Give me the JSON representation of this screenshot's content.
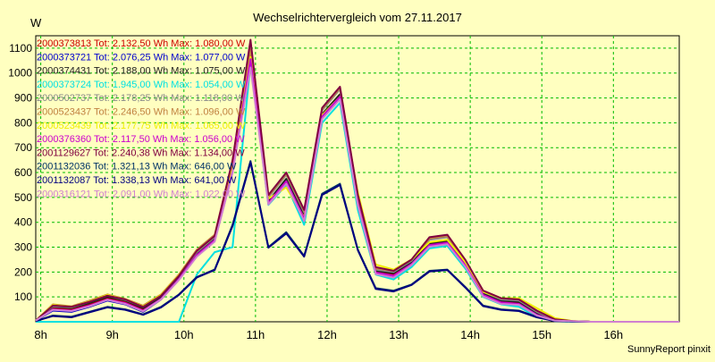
{
  "window": {
    "footer": "SunnyReport pinxit"
  },
  "chart_data": {
    "type": "line",
    "title": "Wechselrichtervergleich vom 27.11.2017",
    "xlabel": "",
    "ylabel": "W",
    "grid": true,
    "legend_placement": "top-left",
    "xlim": [
      7.93,
      16.92
    ],
    "ylim": [
      0,
      1150
    ],
    "x_ticks": [
      8,
      9,
      10,
      11,
      12,
      13,
      14,
      15,
      16
    ],
    "x_tick_labels": [
      "8h",
      "9h",
      "10h",
      "11h",
      "12h",
      "13h",
      "14h",
      "15h",
      "16h"
    ],
    "y_ticks": [
      100,
      200,
      300,
      400,
      500,
      600,
      700,
      800,
      900,
      1000,
      1100
    ],
    "y_tick_labels": [
      "100",
      "200",
      "300",
      "400",
      "500",
      "600",
      "700",
      "800",
      "900",
      "1000",
      "1100"
    ],
    "x": [
      7.93,
      8.17,
      8.43,
      8.68,
      8.93,
      9.18,
      9.43,
      9.68,
      9.93,
      10.18,
      10.43,
      10.68,
      10.93,
      11.18,
      11.43,
      11.68,
      11.93,
      12.18,
      12.43,
      12.68,
      12.93,
      13.18,
      13.43,
      13.68,
      13.93,
      14.18,
      14.43,
      14.68,
      14.93,
      15.18,
      15.43,
      15.68,
      15.93,
      16.18,
      16.43,
      16.68,
      16.92
    ],
    "series": [
      {
        "name": "2000373813",
        "legend": "2000373813  Tot: 2.132,50 Wh Max: 1.080,00 W",
        "color": "#cc0000",
        "values": [
          5,
          55,
          50,
          70,
          95,
          80,
          50,
          95,
          175,
          270,
          330,
          610,
          1080,
          480,
          570,
          420,
          830,
          910,
          480,
          200,
          190,
          235,
          310,
          320,
          230,
          110,
          80,
          75,
          30,
          5,
          2,
          0,
          0,
          0,
          0,
          0,
          0
        ]
      },
      {
        "name": "2000373721",
        "legend": "2000373721  Tot: 2.076,25 Wh Max: 1.077,00 W",
        "color": "#0000cc",
        "values": [
          5,
          45,
          40,
          60,
          85,
          70,
          40,
          90,
          170,
          265,
          325,
          600,
          1070,
          475,
          560,
          410,
          820,
          900,
          470,
          195,
          180,
          230,
          305,
          315,
          225,
          105,
          75,
          70,
          25,
          5,
          2,
          0,
          0,
          0,
          0,
          0,
          0
        ]
      },
      {
        "name": "2000374431",
        "legend": "2000374431  Tot: 2.188,00 Wh Max: 1.075,00 W",
        "color": "#202020",
        "values": [
          5,
          60,
          55,
          75,
          100,
          85,
          55,
          100,
          180,
          275,
          335,
          615,
          1075,
          485,
          575,
          425,
          835,
          915,
          485,
          205,
          195,
          240,
          315,
          325,
          235,
          115,
          85,
          80,
          35,
          6,
          2,
          0,
          0,
          0,
          0,
          0,
          0
        ]
      },
      {
        "name": "2000373724",
        "legend": "2000373724  Tot: 1.945,00 Wh Max: 1.054,00 W",
        "color": "#00e0e0",
        "values": [
          0,
          0,
          0,
          0,
          0,
          0,
          0,
          0,
          0,
          190,
          280,
          300,
          1040,
          470,
          550,
          390,
          800,
          880,
          450,
          190,
          170,
          220,
          295,
          305,
          215,
          100,
          70,
          60,
          20,
          3,
          0,
          0,
          0,
          0,
          0,
          0,
          0
        ]
      },
      {
        "name": "2000502737",
        "legend": "2000502737  Tot: 2.178,25 Wh Max: 1.118,00 W",
        "color": "#8a8a8a",
        "values": [
          5,
          62,
          58,
          80,
          105,
          88,
          60,
          105,
          185,
          280,
          340,
          640,
          1118,
          500,
          590,
          440,
          850,
          935,
          500,
          210,
          200,
          245,
          330,
          340,
          240,
          120,
          90,
          85,
          40,
          8,
          2,
          0,
          0,
          0,
          0,
          0,
          0
        ]
      },
      {
        "name": "2000523437",
        "legend": "2000523437  Tot: 2.246,50 Wh Max: 1.096,00 W",
        "color": "#c08040",
        "values": [
          5,
          70,
          62,
          85,
          110,
          92,
          65,
          110,
          190,
          290,
          350,
          645,
          1096,
          505,
          595,
          445,
          855,
          940,
          505,
          215,
          205,
          250,
          335,
          345,
          245,
          125,
          95,
          90,
          45,
          10,
          3,
          0,
          0,
          0,
          0,
          0,
          0
        ]
      },
      {
        "name": "2000523439",
        "legend": "2000523439  Tot: 2.177,75 Wh Max: 1.065,00 W",
        "color": "#f0f000",
        "values": [
          5,
          68,
          60,
          82,
          108,
          90,
          62,
          108,
          188,
          285,
          345,
          620,
          1065,
          495,
          540,
          420,
          830,
          905,
          520,
          230,
          210,
          250,
          320,
          330,
          240,
          120,
          95,
          95,
          55,
          15,
          3,
          0,
          0,
          0,
          0,
          0,
          0
        ]
      },
      {
        "name": "2000376360",
        "legend": "2000376360  Tot: 2.117,50 Wh Max: 1.056,00 W",
        "color": "#cc00cc",
        "values": [
          5,
          50,
          45,
          65,
          90,
          75,
          45,
          92,
          172,
          268,
          328,
          605,
          1056,
          478,
          565,
          415,
          825,
          905,
          475,
          198,
          185,
          232,
          308,
          318,
          228,
          108,
          78,
          72,
          28,
          5,
          2,
          0,
          0,
          0,
          0,
          0,
          0
        ]
      },
      {
        "name": "2001129627",
        "legend": "2001129627  Tot: 2.240,38 Wh Max: 1.134,00 W",
        "color": "#800040",
        "values": [
          5,
          65,
          60,
          80,
          105,
          90,
          60,
          105,
          185,
          285,
          345,
          650,
          1134,
          510,
          600,
          450,
          860,
          945,
          510,
          220,
          205,
          250,
          340,
          350,
          250,
          125,
          95,
          90,
          45,
          10,
          3,
          0,
          0,
          0,
          0,
          0,
          0
        ]
      },
      {
        "name": "2001132036",
        "legend": "2001132036  Tot: 1.321,13 Wh Max: 646,00 W",
        "color": "#003366",
        "values": [
          3,
          25,
          20,
          40,
          60,
          50,
          30,
          60,
          110,
          180,
          210,
          390,
          646,
          300,
          360,
          265,
          515,
          555,
          290,
          135,
          125,
          150,
          205,
          210,
          140,
          65,
          50,
          45,
          20,
          3,
          1,
          0,
          0,
          0,
          0,
          0,
          0
        ]
      },
      {
        "name": "2001132087",
        "legend": "2001132087  Tot: 1.338,13 Wh Max: 641,00 W",
        "color": "#000080",
        "values": [
          3,
          23,
          18,
          38,
          58,
          48,
          28,
          58,
          108,
          178,
          208,
          385,
          641,
          298,
          355,
          262,
          510,
          550,
          288,
          132,
          122,
          148,
          202,
          208,
          138,
          63,
          48,
          43,
          18,
          3,
          1,
          0,
          0,
          0,
          0,
          0,
          0
        ]
      },
      {
        "name": "2000316121",
        "legend": "2000316121  Tot: 2.091,00 Wh Max: 1.022,00 W",
        "color": "#d080d0",
        "values": [
          5,
          48,
          43,
          62,
          88,
          72,
          42,
          90,
          168,
          262,
          322,
          598,
          1022,
          472,
          555,
          405,
          815,
          895,
          468,
          192,
          178,
          228,
          302,
          312,
          222,
          102,
          72,
          68,
          25,
          5,
          2,
          0,
          0,
          0,
          0,
          0,
          0
        ]
      }
    ]
  }
}
